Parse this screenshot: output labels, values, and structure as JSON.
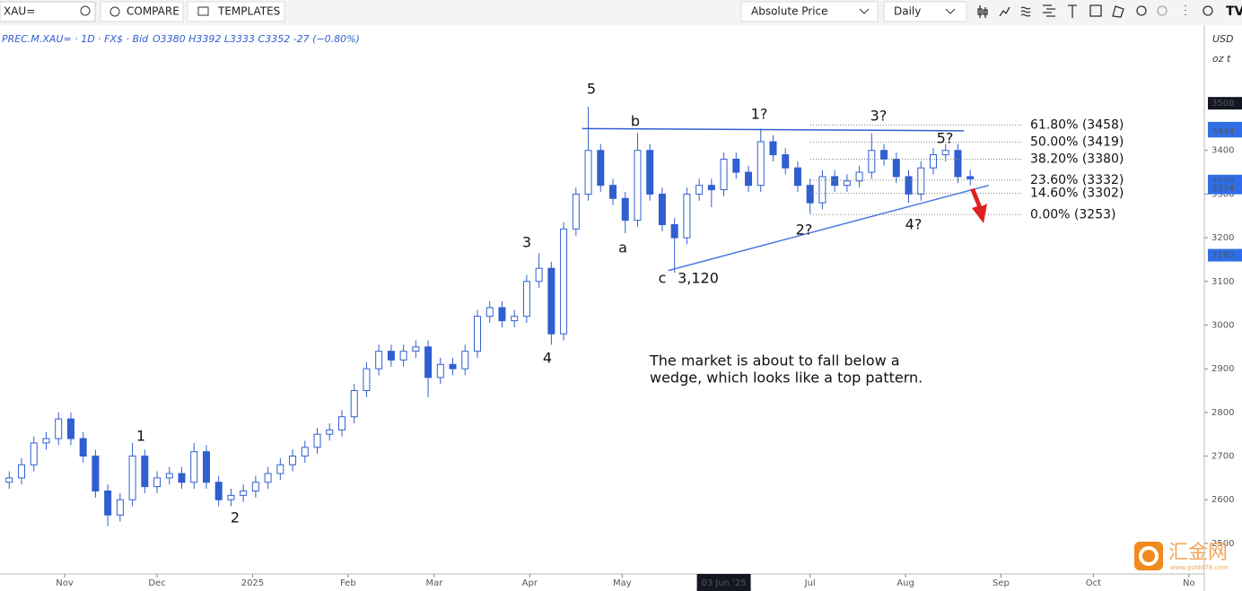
{
  "toolbar": {
    "search": "XAU=",
    "compare": "COMPARE",
    "templates": "TEMPLATES",
    "price_mode": "Absolute Price",
    "interval": "Daily"
  },
  "legend": {
    "symbol": "PREC.M.XAU= · 1D · FX$ · Bid",
    "ohlc": "O3380 H3392 L3333 C3352 -27 (−0.80%)"
  },
  "right_axis": {
    "currency": "USD",
    "unit": "oz t"
  },
  "watermark": {
    "name": "汇金网",
    "site": "www.gold678.com"
  },
  "chart_data": {
    "type": "candlestick",
    "up_color": "#ffffff",
    "down_color": "#2f5fd0",
    "edge_color": "#2f5fd0",
    "xlim": [
      10,
      401
    ],
    "ylim": [
      2430,
      3687
    ],
    "xticks": [
      {
        "value": 31,
        "label": "Nov"
      },
      {
        "value": 61,
        "label": "Dec"
      },
      {
        "value": 92,
        "label": "2025"
      },
      {
        "value": 123,
        "label": "Feb"
      },
      {
        "value": 151,
        "label": "Mar"
      },
      {
        "value": 182,
        "label": "Apr"
      },
      {
        "value": 212,
        "label": "May"
      },
      {
        "value": 245,
        "label": "03 Jun '25",
        "highlight": true
      },
      {
        "value": 273,
        "label": "Jul"
      },
      {
        "value": 304,
        "label": "Aug"
      },
      {
        "value": 335,
        "label": "Sep"
      },
      {
        "value": 365,
        "label": "Oct"
      },
      {
        "value": 396,
        "label": "No"
      }
    ],
    "yticks": [
      2500,
      2600,
      2700,
      2800,
      2900,
      3000,
      3100,
      3200,
      3300,
      3400
    ],
    "x": [
      13,
      17,
      21,
      25,
      29,
      33,
      37,
      41,
      45,
      49,
      53,
      57,
      61,
      65,
      69,
      73,
      77,
      81,
      85,
      89,
      93,
      97,
      101,
      105,
      109,
      113,
      117,
      121,
      125,
      129,
      133,
      137,
      141,
      145,
      149,
      153,
      157,
      161,
      165,
      169,
      173,
      177,
      181,
      185,
      189,
      193,
      197,
      201,
      205,
      209,
      213,
      217,
      221,
      225,
      229,
      233,
      237,
      241,
      245,
      249,
      253,
      257,
      261,
      265,
      269,
      273,
      277,
      281,
      285,
      289,
      293,
      297,
      301,
      305,
      309,
      313,
      317,
      321,
      325
    ],
    "open": [
      2640,
      2650,
      2680,
      2730,
      2740,
      2785,
      2740,
      2700,
      2620,
      2565,
      2600,
      2700,
      2630,
      2650,
      2660,
      2640,
      2710,
      2640,
      2600,
      2610,
      2620,
      2640,
      2660,
      2680,
      2700,
      2720,
      2750,
      2760,
      2790,
      2850,
      2900,
      2940,
      2920,
      2940,
      2950,
      2880,
      2910,
      2900,
      2940,
      3020,
      3040,
      3010,
      3020,
      3100,
      3130,
      2980,
      3220,
      3300,
      3400,
      3320,
      3290,
      3240,
      3400,
      3300,
      3230,
      3200,
      3300,
      3320,
      3310,
      3380,
      3350,
      3320,
      3420,
      3390,
      3360,
      3320,
      3280,
      3340,
      3320,
      3330,
      3350,
      3400,
      3380,
      3340,
      3300,
      3360,
      3390,
      3400,
      3340
    ],
    "high": [
      2665,
      2695,
      2745,
      2755,
      2800,
      2800,
      2755,
      2715,
      2635,
      2615,
      2730,
      2715,
      2665,
      2675,
      2675,
      2730,
      2725,
      2655,
      2625,
      2635,
      2655,
      2675,
      2695,
      2715,
      2735,
      2765,
      2775,
      2805,
      2865,
      2915,
      2955,
      2955,
      2955,
      2965,
      2965,
      2925,
      2925,
      2955,
      3035,
      3055,
      3055,
      3035,
      3115,
      3165,
      3145,
      3235,
      3315,
      3500,
      3415,
      3335,
      3305,
      3440,
      3415,
      3315,
      3245,
      3315,
      3335,
      3335,
      3395,
      3395,
      3365,
      3450,
      3435,
      3405,
      3375,
      3335,
      3355,
      3355,
      3345,
      3365,
      3440,
      3415,
      3395,
      3355,
      3375,
      3405,
      3415,
      3415,
      3355
    ],
    "low": [
      2625,
      2635,
      2665,
      2715,
      2725,
      2725,
      2685,
      2605,
      2540,
      2550,
      2585,
      2615,
      2615,
      2635,
      2625,
      2625,
      2625,
      2585,
      2585,
      2595,
      2605,
      2625,
      2645,
      2665,
      2685,
      2705,
      2735,
      2745,
      2775,
      2835,
      2885,
      2905,
      2905,
      2925,
      2835,
      2865,
      2885,
      2885,
      2925,
      3005,
      2995,
      2995,
      3005,
      3085,
      2955,
      2965,
      3205,
      3285,
      3305,
      3275,
      3210,
      3225,
      3285,
      3215,
      3120,
      3185,
      3285,
      3270,
      3295,
      3335,
      3305,
      3305,
      3375,
      3345,
      3305,
      3255,
      3265,
      3305,
      3305,
      3315,
      3335,
      3365,
      3325,
      3280,
      3285,
      3345,
      3375,
      3325,
      3320
    ],
    "close": [
      2650,
      2680,
      2730,
      2740,
      2785,
      2740,
      2700,
      2620,
      2565,
      2600,
      2700,
      2630,
      2650,
      2660,
      2640,
      2710,
      2640,
      2600,
      2610,
      2620,
      2640,
      2660,
      2680,
      2700,
      2720,
      2750,
      2760,
      2790,
      2850,
      2900,
      2940,
      2920,
      2940,
      2950,
      2880,
      2910,
      2900,
      2940,
      3020,
      3040,
      3010,
      3020,
      3100,
      3130,
      2980,
      3220,
      3300,
      3400,
      3320,
      3290,
      3240,
      3400,
      3300,
      3230,
      3200,
      3300,
      3320,
      3310,
      3380,
      3350,
      3320,
      3420,
      3390,
      3360,
      3320,
      3280,
      3340,
      3320,
      3330,
      3350,
      3400,
      3380,
      3340,
      3300,
      3360,
      3390,
      3400,
      3340,
      3335
    ],
    "trendlines": [
      {
        "x": [
          199,
          323
        ],
        "y": [
          3450,
          3445
        ],
        "color": "#2f5fd0"
      },
      {
        "x": [
          227,
          331
        ],
        "y": [
          3125,
          3320
        ],
        "color": "#4a78e0"
      }
    ],
    "fib": [
      {
        "label": "61.80% (3458)",
        "value": 3458
      },
      {
        "label": "50.00% (3419)",
        "value": 3419
      },
      {
        "label": "38.20% (3380)",
        "value": 3380
      },
      {
        "label": "23.60% (3332)",
        "value": 3332
      },
      {
        "label": "14.60% (3302)",
        "value": 3302
      },
      {
        "label": "0.00% (3253)",
        "value": 3253
      }
    ],
    "price_labels": [
      {
        "value": 3508,
        "color": "#131722"
      },
      {
        "value": 3451,
        "color": "#2f6ee8"
      },
      {
        "value": 3444,
        "color": "#2f6ee8"
      },
      {
        "value": 3330,
        "color": "#2f6ee8"
      },
      {
        "value": 3314,
        "color": "#2f6ee8"
      },
      {
        "value": 3160,
        "color": "#2f6ee8"
      }
    ],
    "annotations": [
      "5",
      "b",
      "1?",
      "3?",
      "5?",
      "a",
      "c",
      "3,120",
      "2?",
      "4?",
      "3",
      "4",
      "1",
      "2"
    ],
    "note": [
      "The market is about to fall below a",
      "wedge, which looks like a top pattern."
    ]
  }
}
